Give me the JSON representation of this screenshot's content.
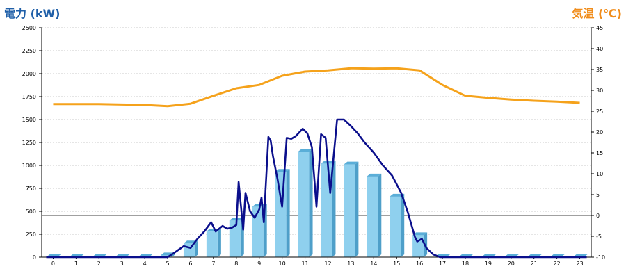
{
  "titles": {
    "left": "電力 (kW)",
    "right": "気温 (℃)"
  },
  "colors": {
    "power_line": "#0b0f8c",
    "bars": "#8fd0ee",
    "temp_line": "#f5a21b",
    "left_title": "#1f5fa8",
    "right_title": "#f08c1a"
  },
  "chart_data": {
    "type": "bar",
    "hours": [
      "0",
      "1",
      "2",
      "3",
      "4",
      "5",
      "6",
      "7",
      "8",
      "9",
      "10",
      "11",
      "12",
      "13",
      "14",
      "15",
      "16",
      "17",
      "18",
      "19",
      "20",
      "21",
      "22",
      "23"
    ],
    "y_left": {
      "min": 0,
      "max": 2500,
      "ticks": [
        0,
        250,
        500,
        750,
        1000,
        1250,
        1500,
        1750,
        2000,
        2250,
        2500
      ]
    },
    "y_right": {
      "min": -10,
      "max": 45,
      "ticks": [
        -10,
        -5,
        0,
        5,
        10,
        15,
        20,
        25,
        30,
        35,
        40,
        45
      ]
    },
    "grid": true,
    "series": [
      {
        "values": [
          0,
          0,
          0,
          0,
          0,
          20,
          150,
          280,
          400,
          550,
          930,
          1150,
          1020,
          1010,
          880,
          660,
          240,
          5,
          0,
          0,
          0,
          0,
          0,
          0
        ]
      },
      {
        "values": [
          26.7,
          26.7,
          26.7,
          26.6,
          26.5,
          26.2,
          26.8,
          28.7,
          30.5,
          31.3,
          33.5,
          34.5,
          34.8,
          35.3,
          35.2,
          35.3,
          34.8,
          31.3,
          28.7,
          28.2,
          27.8,
          27.5,
          27.3,
          27.0
        ]
      }
    ],
    "power_curve": {
      "x": [
        5.0,
        5.3,
        5.7,
        6.0,
        6.3,
        6.6,
        6.9,
        7.1,
        7.4,
        7.6,
        7.8,
        8.0,
        8.1,
        8.3,
        8.4,
        8.6,
        8.8,
        9.0,
        9.1,
        9.2,
        9.4,
        9.5,
        9.6,
        9.8,
        10.0,
        10.2,
        10.4,
        10.6,
        10.9,
        11.1,
        11.3,
        11.5,
        11.7,
        11.9,
        12.1,
        12.4,
        12.7,
        13.0,
        13.3,
        13.6,
        14.0,
        14.4,
        14.8,
        15.2,
        15.5,
        15.8,
        15.9,
        16.1,
        16.3,
        16.6,
        16.9,
        17.2
      ],
      "y": [
        0,
        50,
        120,
        100,
        200,
        280,
        380,
        280,
        340,
        310,
        320,
        350,
        820,
        300,
        700,
        500,
        430,
        520,
        650,
        380,
        1310,
        1270,
        1100,
        850,
        550,
        1300,
        1290,
        1320,
        1400,
        1350,
        1200,
        550,
        1340,
        1300,
        700,
        1500,
        1500,
        1430,
        1350,
        1250,
        1140,
        1000,
        890,
        700,
        480,
        220,
        170,
        200,
        100,
        30,
        0,
        0
      ]
    }
  }
}
